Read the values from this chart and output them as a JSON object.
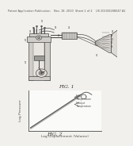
{
  "background_color": "#f2f0ec",
  "header_text": "Patent Application Publication    Nov. 18, 2010  Sheet 1 of 2    US 2010/0288047 A1",
  "header_fontsize": 2.5,
  "fig1_label": "FIG. 1",
  "fig2_label": "FIG. 2",
  "fig_label_fontsize": 4.5,
  "ylabel_fig2": "Log Pressure",
  "xlabel_fig2": "Log Displacement (Volume)",
  "axis_label_fontsize": 3.2,
  "annotation_fontsize": 2.5,
  "line_color": "#4a4a4a",
  "light_gray": "#d0cdc8",
  "med_gray": "#b0aeaa",
  "dark_gray": "#888582"
}
